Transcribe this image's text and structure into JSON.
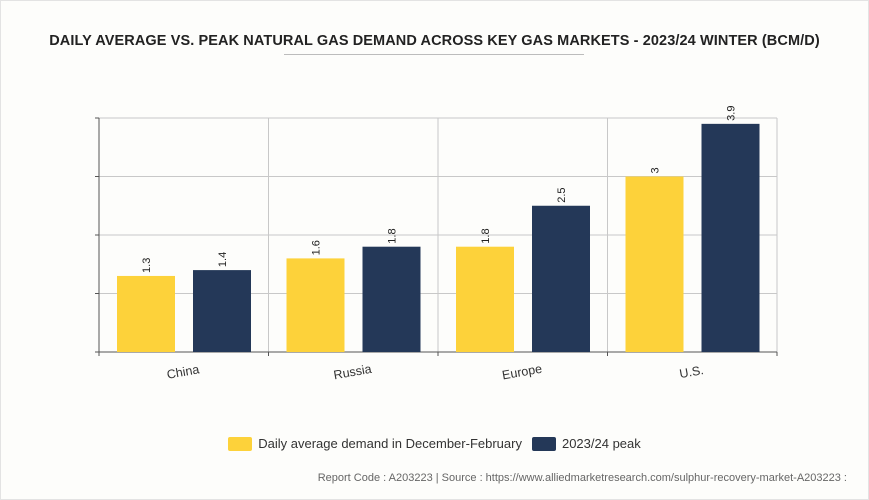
{
  "title": "DAILY AVERAGE VS. PEAK NATURAL GAS DEMAND ACROSS KEY GAS MARKETS - 2023/24 WINTER (BCM/D)",
  "footer": "Report Code : A203223  |  Source : https://www.alliedmarketresearch.com/sulphur-recovery-market-A203223 :",
  "colors": {
    "series_1": "#fdd23a",
    "series_2": "#243858",
    "grid": "#c8c8c8",
    "axis": "#555555"
  },
  "chart_data": {
    "type": "bar",
    "categories": [
      "China",
      "Russia",
      "Europe",
      "U.S."
    ],
    "series": [
      {
        "name": "Daily average demand in December-February",
        "values": [
          1.3,
          1.6,
          1.8,
          3
        ],
        "labels": [
          "1.3",
          "1.6",
          "1.8",
          "3"
        ]
      },
      {
        "name": "2023/24 peak",
        "values": [
          1.4,
          1.8,
          2.5,
          3.9
        ],
        "labels": [
          "1.4",
          "1.8",
          "2.5",
          "3.9"
        ]
      }
    ],
    "ylim": [
      0,
      4
    ],
    "grid": true,
    "legend": "bottom-center",
    "xlabel": "",
    "ylabel": ""
  }
}
